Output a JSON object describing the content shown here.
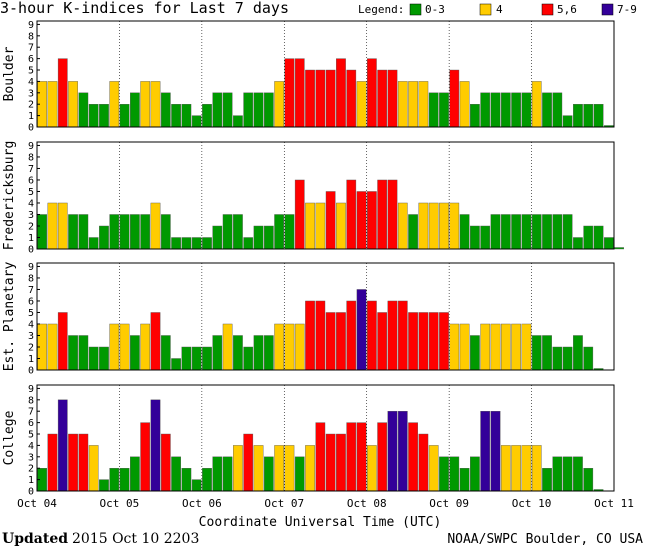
{
  "chart_data": {
    "type": "bar",
    "title": "3-hour K-indices for Last 7 days",
    "legend": {
      "label": "Legend:",
      "entries": [
        {
          "label": "0-3",
          "color": "#009900"
        },
        {
          "label": "4",
          "color": "#ffcc00"
        },
        {
          "label": "5,6",
          "color": "#ff0000"
        },
        {
          "label": "7-9",
          "color": "#330099"
        }
      ]
    },
    "ylim": [
      0,
      9
    ],
    "yticks": [
      "0",
      "1",
      "2",
      "3",
      "4",
      "5",
      "6",
      "7",
      "8",
      "9"
    ],
    "xlabel": "Coordinate Universal Time (UTC)",
    "xticks": [
      "Oct 04",
      "Oct 05",
      "Oct 06",
      "Oct 07",
      "Oct 08",
      "Oct 09",
      "Oct 10",
      "Oct 11"
    ],
    "series": [
      {
        "name": "Boulder",
        "values": [
          4,
          4,
          6,
          4,
          3,
          2,
          2,
          4,
          2,
          3,
          4,
          4,
          3,
          2,
          2,
          1,
          2,
          3,
          3,
          1,
          3,
          3,
          3,
          4,
          6,
          6,
          5,
          5,
          5,
          6,
          5,
          4,
          6,
          5,
          5,
          4,
          4,
          4,
          3,
          3,
          5,
          4,
          2,
          3,
          3,
          3,
          3,
          3,
          4,
          3,
          3,
          1,
          2,
          2,
          2,
          0
        ]
      },
      {
        "name": "Fredericksburg",
        "values": [
          3,
          4,
          4,
          3,
          3,
          1,
          2,
          3,
          3,
          3,
          3,
          4,
          3,
          1,
          1,
          1,
          1,
          2,
          3,
          3,
          1,
          2,
          2,
          3,
          3,
          6,
          4,
          4,
          5,
          4,
          6,
          5,
          5,
          6,
          6,
          4,
          3,
          4,
          4,
          4,
          4,
          3,
          2,
          2,
          3,
          3,
          3,
          3,
          3,
          3,
          3,
          3,
          1,
          2,
          2,
          1,
          0
        ]
      },
      {
        "name": "Est. Planetary",
        "values": [
          4,
          4,
          5,
          3,
          3,
          2,
          2,
          4,
          4,
          3,
          4,
          5,
          3,
          1,
          2,
          2,
          2,
          3,
          4,
          3,
          2,
          3,
          3,
          4,
          4,
          4,
          6,
          6,
          5,
          5,
          6,
          7,
          6,
          5,
          6,
          6,
          5,
          5,
          5,
          5,
          4,
          4,
          3,
          4,
          4,
          4,
          4,
          4,
          3,
          3,
          2,
          2,
          3,
          2,
          0
        ]
      },
      {
        "name": "College",
        "values": [
          2,
          5,
          8,
          5,
          5,
          4,
          1,
          2,
          2,
          3,
          6,
          8,
          5,
          3,
          2,
          1,
          2,
          3,
          3,
          4,
          5,
          4,
          3,
          4,
          4,
          3,
          4,
          6,
          5,
          5,
          6,
          6,
          4,
          6,
          7,
          7,
          6,
          5,
          4,
          3,
          3,
          2,
          3,
          7,
          7,
          4,
          4,
          4,
          4,
          2,
          3,
          3,
          3,
          2,
          0
        ]
      }
    ]
  },
  "footer": {
    "updated_label": "Updated",
    "updated_value": "2015 Oct 10 2203",
    "credit": "NOAA/SWPC Boulder, CO USA"
  }
}
